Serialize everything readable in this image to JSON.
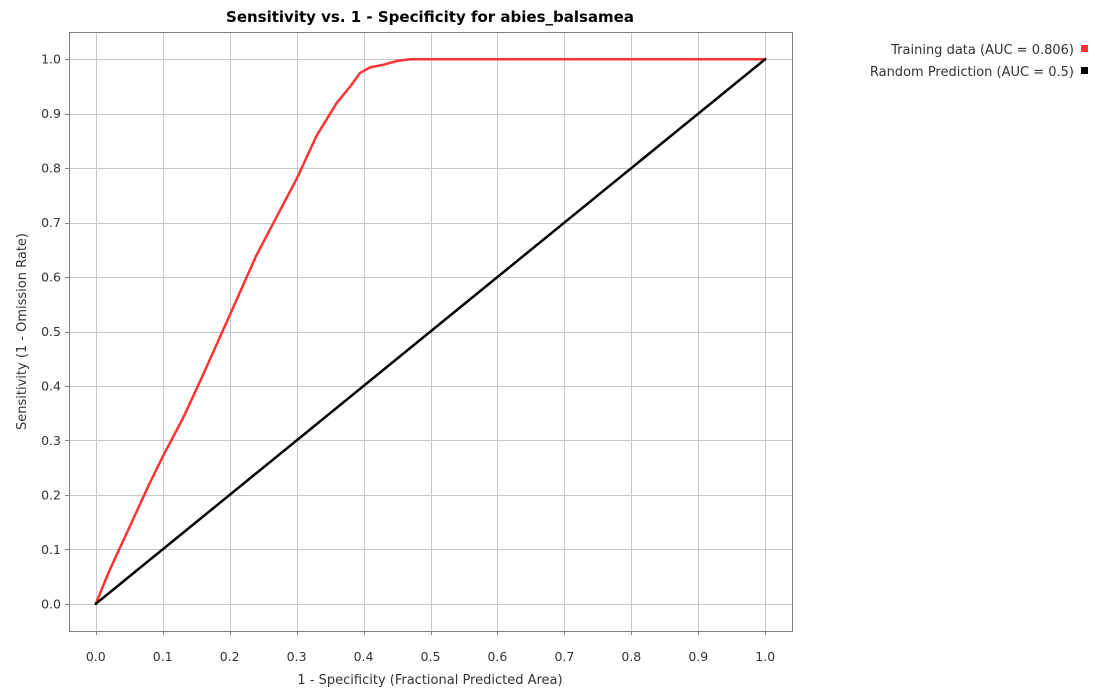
{
  "chart_data": {
    "type": "line",
    "title": "Sensitivity vs. 1 - Specificity for abies_balsamea",
    "xlabel": "1 - Specificity  (Fractional Predicted Area)",
    "ylabel": "Sensitivity  (1 - Omission Rate)",
    "xlim": [
      -0.04,
      1.04
    ],
    "ylim": [
      -0.05,
      1.05
    ],
    "xticks": [
      "0.0",
      "0.1",
      "0.2",
      "0.3",
      "0.4",
      "0.5",
      "0.6",
      "0.7",
      "0.8",
      "0.9",
      "1.0"
    ],
    "yticks": [
      "0.0",
      "0.1",
      "0.2",
      "0.3",
      "0.4",
      "0.5",
      "0.6",
      "0.7",
      "0.8",
      "0.9",
      "1.0"
    ],
    "grid": true,
    "legend_position": "outside-top-right",
    "series": [
      {
        "name": "Training data (AUC = 0.806)",
        "color": "#ff3333",
        "x": [
          0.0,
          0.01,
          0.02,
          0.05,
          0.08,
          0.1,
          0.13,
          0.16,
          0.2,
          0.24,
          0.27,
          0.3,
          0.33,
          0.36,
          0.38,
          0.395,
          0.41,
          0.43,
          0.45,
          0.47,
          0.5,
          0.6,
          0.7,
          0.8,
          0.9,
          1.0
        ],
        "y": [
          0.0,
          0.03,
          0.06,
          0.14,
          0.22,
          0.27,
          0.34,
          0.42,
          0.53,
          0.64,
          0.71,
          0.78,
          0.86,
          0.92,
          0.95,
          0.975,
          0.985,
          0.99,
          0.997,
          1.0,
          1.0,
          1.0,
          1.0,
          1.0,
          1.0,
          1.0
        ]
      },
      {
        "name": "Random Prediction (AUC = 0.5)",
        "color": "#000000",
        "x": [
          0.0,
          1.0
        ],
        "y": [
          0.0,
          1.0
        ]
      }
    ]
  }
}
